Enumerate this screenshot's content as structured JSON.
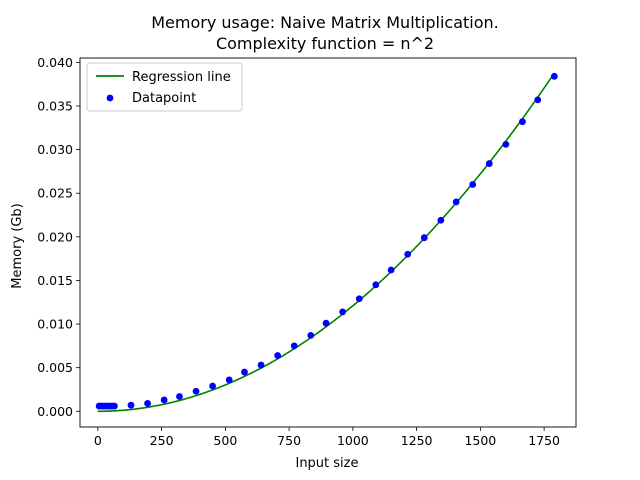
{
  "chart_data": {
    "type": "scatter",
    "title": "Memory usage: Naive Matrix Multiplication.",
    "subtitle": "Complexity function = n^2",
    "xlabel": "Input size",
    "ylabel": "Memory (Gb)",
    "xlim": [
      -70,
      1875
    ],
    "ylim": [
      -0.0018,
      0.0405
    ],
    "xticks": [
      0,
      250,
      500,
      750,
      1000,
      1250,
      1500,
      1750
    ],
    "yticks": [
      0.0,
      0.005,
      0.01,
      0.015,
      0.02,
      0.025,
      0.03,
      0.035,
      0.04
    ],
    "legend_position": "top-left",
    "grid": false,
    "series": [
      {
        "name": "Regression line",
        "kind": "line",
        "color": "#008000",
        "model": "quadratic",
        "coefficient": 1.21e-08,
        "x_range": [
          0,
          1790
        ]
      },
      {
        "name": "Datapoint",
        "kind": "scatter",
        "color": "#0000ff",
        "x": [
          5,
          15,
          25,
          35,
          45,
          55,
          65,
          130,
          195,
          260,
          320,
          385,
          450,
          515,
          575,
          640,
          705,
          770,
          835,
          895,
          960,
          1025,
          1090,
          1150,
          1215,
          1280,
          1345,
          1405,
          1470,
          1535,
          1600,
          1665,
          1725,
          1790
        ],
        "y": [
          0.0006,
          0.0006,
          0.0006,
          0.0006,
          0.0006,
          0.0006,
          0.0006,
          0.0007,
          0.0009,
          0.0013,
          0.0017,
          0.0023,
          0.0029,
          0.0036,
          0.0045,
          0.0053,
          0.0064,
          0.0075,
          0.0087,
          0.0101,
          0.0114,
          0.0129,
          0.0145,
          0.0162,
          0.018,
          0.0199,
          0.0219,
          0.024,
          0.026,
          0.0284,
          0.0306,
          0.0332,
          0.0357,
          0.0384
        ]
      }
    ]
  }
}
